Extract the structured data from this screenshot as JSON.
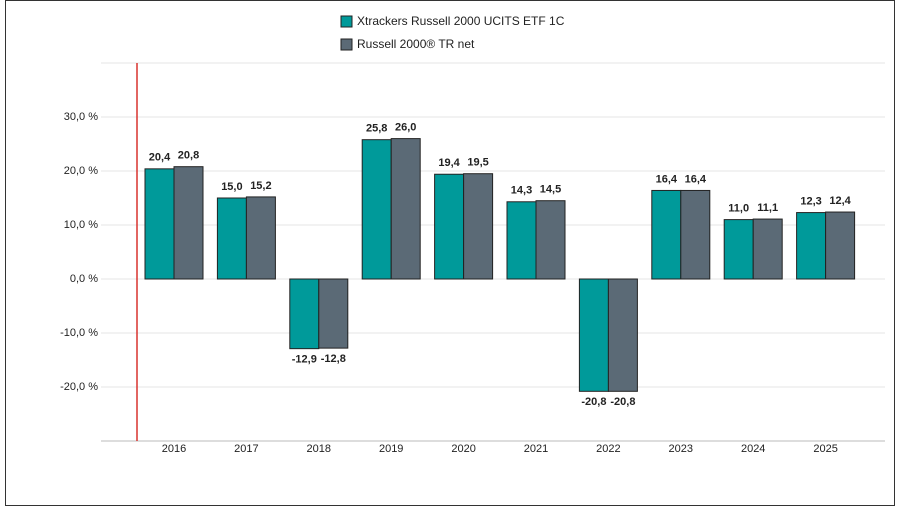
{
  "chart_data": {
    "type": "bar",
    "categories": [
      "2016",
      "2017",
      "2018",
      "2019",
      "2020",
      "2021",
      "2022",
      "2023",
      "2024",
      "2025"
    ],
    "series": [
      {
        "name": "Xtrackers Russell 2000 UCITS ETF 1C",
        "color": "#009a9a",
        "values": [
          20.4,
          15.0,
          -12.9,
          25.8,
          19.4,
          14.3,
          -20.8,
          16.4,
          11.0,
          12.3
        ],
        "value_labels": [
          "20,4",
          "15,0",
          "-12,9",
          "25,8",
          "19,4",
          "14,3",
          "-20,8",
          "16,4",
          "11,0",
          "12,3"
        ]
      },
      {
        "name": "Russell 2000® TR net",
        "color": "#5b6a76",
        "values": [
          20.8,
          15.2,
          -12.8,
          26.0,
          19.5,
          14.5,
          -20.8,
          16.4,
          11.1,
          12.4
        ],
        "value_labels": [
          "20,8",
          "15,2",
          "-12,8",
          "26,0",
          "19,5",
          "14,5",
          "-20,8",
          "16,4",
          "11,1",
          "12,4"
        ]
      }
    ],
    "ylim": [
      -30,
      40
    ],
    "yticks": [
      {
        "value": -20,
        "label": "-20,0 %"
      },
      {
        "value": -10,
        "label": "-10,0 %"
      },
      {
        "value": 0,
        "label": "0,0 %"
      },
      {
        "value": 10,
        "label": "10,0 %"
      },
      {
        "value": 20,
        "label": "20,0 %"
      },
      {
        "value": 30,
        "label": "30,0 %"
      }
    ],
    "grid": true,
    "legend": "top"
  }
}
